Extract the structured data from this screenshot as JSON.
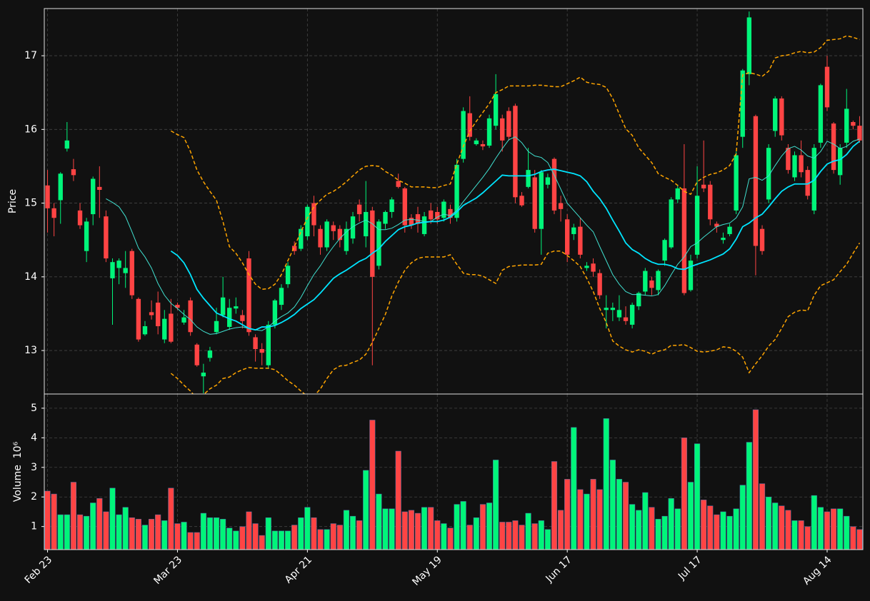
{
  "chart_data": {
    "type": "candlestick",
    "ylabel": "Price",
    "volume_ylabel": "Volume  10⁶",
    "categories": [
      "Feb 23",
      null,
      null,
      null,
      null,
      null,
      null,
      null,
      null,
      null,
      null,
      null,
      null,
      null,
      null,
      null,
      null,
      null,
      null,
      null,
      "Mar 23",
      null,
      null,
      null,
      null,
      null,
      null,
      null,
      null,
      null,
      null,
      null,
      null,
      null,
      null,
      null,
      null,
      null,
      null,
      null,
      "Apr 21",
      null,
      null,
      null,
      null,
      null,
      null,
      null,
      null,
      null,
      null,
      null,
      null,
      null,
      null,
      null,
      null,
      null,
      null,
      null,
      "May 19",
      null,
      null,
      null,
      null,
      null,
      null,
      null,
      null,
      null,
      null,
      null,
      null,
      null,
      null,
      null,
      null,
      null,
      null,
      null,
      "Jun 17",
      null,
      null,
      null,
      null,
      null,
      null,
      null,
      null,
      null,
      null,
      null,
      null,
      null,
      null,
      null,
      null,
      null,
      null,
      null,
      "Jul 17",
      null,
      null,
      null,
      null,
      null,
      null,
      null,
      null,
      null,
      null,
      null,
      null,
      null,
      null,
      null,
      null,
      null,
      null,
      null,
      "Aug 14",
      null,
      null,
      null,
      null,
      null
    ],
    "open": [
      15.24,
      14.93,
      15.04,
      15.74,
      15.46,
      14.9,
      14.35,
      14.85,
      15.22,
      14.82,
      13.98,
      14.12,
      14.05,
      14.35,
      13.7,
      13.22,
      13.52,
      13.65,
      13.15,
      13.5,
      13.62,
      13.38,
      13.68,
      13.08,
      12.65,
      12.9,
      13.25,
      13.48,
      13.32,
      13.57,
      13.48,
      14.25,
      13.18,
      13.02,
      12.8,
      13.35,
      13.62,
      13.9,
      14.42,
      14.38,
      14.55,
      15.0,
      14.65,
      14.4,
      14.7,
      14.65,
      14.35,
      14.52,
      14.98,
      14.55,
      14.9,
      14.15,
      14.72,
      14.88,
      15.3,
      15.2,
      14.8,
      14.85,
      14.58,
      14.9,
      14.88,
      14.8,
      14.92,
      14.8,
      15.6,
      16.22,
      15.8,
      15.8,
      15.78,
      16.05,
      16.15,
      16.25,
      16.32,
      15.1,
      15.22,
      15.35,
      14.65,
      15.25,
      15.6,
      15.0,
      14.78,
      14.58,
      14.68,
      14.12,
      14.18,
      14.05,
      13.55,
      13.55,
      13.45,
      13.45,
      13.35,
      13.6,
      13.8,
      13.95,
      13.82,
      14.22,
      14.4,
      15.05,
      15.2,
      13.82,
      14.3,
      15.25,
      15.25,
      14.72,
      14.5,
      14.58,
      14.9,
      15.9,
      16.75,
      16.18,
      14.65,
      15.05,
      15.98,
      16.42,
      15.75,
      15.35,
      15.65,
      15.45,
      14.9,
      15.82,
      16.85,
      16.08,
      15.38,
      15.82,
      16.1,
      16.05
    ],
    "high": [
      15.45,
      15.0,
      15.42,
      16.1,
      15.6,
      15.0,
      14.8,
      15.36,
      15.5,
      14.9,
      14.25,
      14.25,
      14.35,
      14.38,
      13.72,
      13.4,
      13.68,
      13.8,
      13.55,
      13.7,
      13.65,
      13.55,
      13.72,
      13.1,
      12.82,
      13.05,
      13.58,
      14.0,
      13.7,
      13.72,
      13.55,
      14.35,
      13.22,
      13.1,
      13.4,
      13.7,
      13.9,
      14.2,
      14.48,
      14.7,
      14.98,
      15.1,
      14.7,
      14.78,
      14.75,
      14.7,
      14.75,
      14.88,
      15.05,
      15.3,
      14.95,
      14.78,
      14.9,
      15.08,
      15.4,
      15.22,
      14.85,
      14.95,
      14.88,
      15.0,
      14.95,
      15.05,
      14.98,
      15.6,
      16.3,
      16.45,
      15.88,
      15.85,
      16.2,
      16.75,
      16.2,
      16.3,
      16.35,
      15.15,
      15.75,
      15.45,
      15.45,
      15.4,
      15.62,
      15.1,
      14.85,
      14.72,
      14.8,
      14.2,
      14.25,
      14.1,
      13.75,
      13.65,
      13.75,
      13.6,
      13.65,
      13.8,
      14.12,
      14.0,
      14.1,
      14.52,
      15.08,
      15.25,
      15.8,
      14.3,
      15.5,
      15.85,
      15.3,
      14.75,
      14.6,
      14.72,
      15.7,
      16.82,
      17.6,
      16.2,
      14.7,
      15.8,
      16.45,
      16.45,
      15.8,
      15.7,
      15.85,
      15.5,
      15.8,
      16.62,
      17.0,
      16.1,
      15.8,
      16.55,
      16.12,
      16.18
    ],
    "low": [
      14.6,
      14.55,
      14.72,
      15.7,
      15.3,
      14.65,
      14.2,
      14.7,
      14.8,
      14.2,
      13.35,
      13.9,
      13.85,
      13.7,
      13.12,
      13.2,
      13.42,
      13.22,
      13.1,
      13.1,
      13.55,
      13.35,
      13.2,
      12.78,
      12.42,
      12.85,
      13.22,
      13.45,
      13.28,
      13.5,
      13.3,
      13.2,
      12.85,
      12.8,
      12.75,
      13.3,
      13.55,
      13.85,
      14.3,
      14.35,
      14.5,
      14.55,
      14.3,
      14.35,
      14.5,
      14.4,
      14.3,
      14.45,
      14.75,
      14.4,
      12.8,
      14.1,
      14.65,
      14.8,
      15.2,
      14.6,
      14.65,
      14.6,
      14.55,
      14.72,
      14.72,
      14.75,
      14.72,
      14.75,
      15.55,
      15.85,
      15.78,
      15.72,
      15.75,
      16.0,
      15.7,
      15.85,
      15.0,
      14.95,
      15.2,
      14.6,
      14.3,
      15.2,
      14.85,
      14.75,
      14.2,
      14.5,
      14.25,
      14.08,
      14.0,
      13.7,
      13.3,
      13.4,
      13.4,
      13.35,
      13.3,
      13.55,
      13.75,
      13.75,
      13.75,
      14.15,
      14.38,
      15.0,
      13.75,
      13.8,
      14.25,
      15.15,
      14.7,
      14.6,
      14.45,
      14.55,
      14.85,
      15.75,
      16.6,
      14.02,
      14.3,
      15.0,
      15.9,
      15.85,
      15.4,
      15.3,
      15.35,
      15.05,
      14.85,
      15.75,
      16.25,
      15.4,
      15.25,
      15.75,
      16.0,
      15.82
    ],
    "close": [
      14.93,
      14.8,
      15.4,
      15.85,
      15.38,
      14.7,
      14.75,
      15.33,
      15.18,
      14.25,
      14.2,
      14.22,
      14.12,
      13.75,
      13.15,
      13.33,
      13.48,
      13.33,
      13.43,
      13.12,
      13.58,
      13.45,
      13.25,
      12.8,
      12.7,
      13.0,
      13.4,
      13.72,
      13.58,
      13.6,
      13.4,
      13.25,
      13.02,
      12.97,
      13.35,
      13.68,
      13.85,
      14.15,
      14.35,
      14.65,
      14.95,
      14.7,
      14.4,
      14.75,
      14.62,
      14.5,
      14.65,
      14.82,
      14.85,
      14.88,
      14.0,
      14.75,
      14.88,
      15.05,
      15.22,
      14.7,
      14.7,
      14.72,
      14.82,
      14.78,
      14.78,
      15.02,
      14.8,
      15.52,
      16.25,
      15.9,
      15.85,
      15.77,
      16.15,
      16.48,
      15.85,
      15.9,
      15.08,
      14.97,
      15.45,
      14.65,
      15.42,
      15.35,
      14.9,
      14.92,
      14.3,
      14.67,
      14.3,
      14.15,
      14.07,
      13.75,
      13.58,
      13.58,
      13.55,
      13.4,
      13.62,
      13.78,
      14.08,
      13.85,
      14.08,
      14.5,
      15.05,
      15.2,
      13.78,
      14.22,
      15.1,
      15.2,
      14.78,
      14.68,
      14.53,
      14.68,
      15.65,
      16.8,
      17.52,
      14.42,
      14.35,
      15.75,
      16.42,
      15.92,
      15.45,
      15.65,
      15.42,
      15.1,
      15.75,
      16.6,
      16.3,
      15.45,
      15.75,
      16.28,
      16.05,
      15.85
    ],
    "volume": [
      2.2,
      2.1,
      1.4,
      1.4,
      2.5,
      1.4,
      1.35,
      1.8,
      1.95,
      1.5,
      2.3,
      1.4,
      1.65,
      1.3,
      1.25,
      1.05,
      1.25,
      1.4,
      1.2,
      2.3,
      1.1,
      1.15,
      0.8,
      0.8,
      1.45,
      1.3,
      1.3,
      1.25,
      0.95,
      0.85,
      1.0,
      1.5,
      1.1,
      0.7,
      1.3,
      0.85,
      0.85,
      0.85,
      1.05,
      1.3,
      1.65,
      1.3,
      0.9,
      0.9,
      1.1,
      1.05,
      1.55,
      1.35,
      1.2,
      2.9,
      4.6,
      2.1,
      1.6,
      1.6,
      3.55,
      1.5,
      1.55,
      1.45,
      1.65,
      1.65,
      1.2,
      1.1,
      0.95,
      1.75,
      1.85,
      1.05,
      1.3,
      1.75,
      1.8,
      3.25,
      1.15,
      1.15,
      1.2,
      1.05,
      1.45,
      1.1,
      1.2,
      0.9,
      3.2,
      1.55,
      2.6,
      4.35,
      2.25,
      2.1,
      2.6,
      2.25,
      4.65,
      3.25,
      2.6,
      2.5,
      1.75,
      1.55,
      2.15,
      1.65,
      1.25,
      1.35,
      1.95,
      1.6,
      4.0,
      2.5,
      3.8,
      1.9,
      1.7,
      1.4,
      1.5,
      1.35,
      1.6,
      2.4,
      3.85,
      4.95,
      2.45,
      2.0,
      1.8,
      1.7,
      1.55,
      1.2,
      1.2,
      1.0,
      2.05,
      1.65,
      1.5,
      1.6,
      1.6,
      1.35,
      1.0,
      0.9
    ],
    "overlays": [
      {
        "color": "#40e0d0",
        "values": [
          null,
          null,
          null,
          null,
          null,
          null,
          null,
          null,
          null,
          15.06,
          15.01,
          14.95,
          14.82,
          14.61,
          14.39,
          14.27,
          14.12,
          13.91,
          13.75,
          13.64,
          13.57,
          13.49,
          13.42,
          13.32,
          13.26,
          13.22,
          13.23,
          13.26,
          13.29,
          13.31,
          13.32,
          13.3,
          13.28,
          13.27,
          13.32,
          13.4,
          13.46,
          13.51,
          13.59,
          13.72,
          13.88,
          14.03,
          14.15,
          14.29,
          14.41,
          14.52,
          14.61,
          14.68,
          14.73,
          14.77,
          14.72,
          14.64,
          14.64,
          14.66,
          14.71,
          14.77,
          14.78,
          14.77,
          14.75,
          14.75,
          14.81,
          14.85,
          14.83,
          14.9,
          15.02,
          15.13,
          15.24,
          15.35,
          15.47,
          15.61,
          15.74,
          15.86,
          15.9,
          15.82,
          15.7,
          15.64,
          15.62,
          15.55,
          15.38,
          15.19,
          15.0,
          14.9,
          14.8,
          14.7,
          14.61,
          14.41,
          14.22,
          14.03,
          13.9,
          13.8,
          13.76,
          13.76,
          13.75,
          13.74,
          13.76,
          13.88,
          14.03,
          14.17,
          14.27,
          14.41,
          14.46,
          14.54,
          14.61,
          14.68,
          14.71,
          14.73,
          14.8,
          14.95,
          15.33,
          15.35,
          15.31,
          15.37,
          15.51,
          15.64,
          15.74,
          15.77,
          15.72,
          15.64,
          15.61,
          15.7,
          15.84,
          15.8,
          15.74,
          15.77,
          15.84,
          15.87
        ]
      },
      {
        "color": "#00e5ff",
        "values": [
          null,
          null,
          null,
          null,
          null,
          null,
          null,
          null,
          null,
          null,
          null,
          null,
          null,
          null,
          null,
          null,
          null,
          null,
          null,
          14.35,
          14.29,
          14.19,
          14.03,
          13.83,
          13.71,
          13.61,
          13.51,
          13.47,
          13.43,
          13.4,
          13.35,
          13.3,
          13.28,
          13.32,
          13.32,
          13.34,
          13.38,
          13.43,
          13.49,
          13.57,
          13.63,
          13.69,
          13.78,
          13.88,
          13.98,
          14.04,
          14.09,
          14.15,
          14.21,
          14.25,
          14.32,
          14.38,
          14.48,
          14.56,
          14.64,
          14.68,
          14.7,
          14.73,
          14.74,
          14.75,
          14.75,
          14.77,
          14.81,
          14.88,
          14.97,
          15.02,
          15.07,
          15.14,
          15.22,
          15.3,
          15.38,
          15.37,
          15.37,
          15.37,
          15.37,
          15.39,
          15.43,
          15.45,
          15.46,
          15.44,
          15.42,
          15.4,
          15.37,
          15.29,
          15.16,
          15.06,
          14.93,
          14.77,
          14.62,
          14.46,
          14.37,
          14.32,
          14.25,
          14.2,
          14.17,
          14.17,
          14.15,
          14.11,
          14.1,
          14.14,
          14.17,
          14.2,
          14.23,
          14.27,
          14.31,
          14.38,
          14.51,
          14.68,
          14.73,
          14.8,
          14.85,
          14.95,
          15.06,
          15.16,
          15.22,
          15.26,
          15.26,
          15.26,
          15.31,
          15.43,
          15.53,
          15.57,
          15.59,
          15.66,
          15.77,
          15.84
        ]
      },
      {
        "color": "#ffa500",
        "linestyle": "dashed",
        "values": [
          null,
          null,
          null,
          null,
          null,
          null,
          null,
          null,
          null,
          null,
          null,
          null,
          null,
          null,
          null,
          null,
          null,
          null,
          null,
          15.98,
          15.93,
          15.89,
          15.7,
          15.45,
          15.29,
          15.16,
          15.04,
          14.75,
          14.41,
          14.32,
          14.19,
          14.03,
          13.9,
          13.83,
          13.84,
          13.9,
          14.03,
          14.22,
          14.41,
          14.61,
          14.8,
          14.95,
          15.04,
          15.12,
          15.16,
          15.22,
          15.29,
          15.37,
          15.45,
          15.5,
          15.51,
          15.5,
          15.43,
          15.38,
          15.31,
          15.27,
          15.22,
          15.22,
          15.22,
          15.21,
          15.21,
          15.24,
          15.26,
          15.53,
          15.77,
          15.98,
          16.11,
          16.23,
          16.35,
          16.5,
          16.54,
          16.59,
          16.59,
          16.59,
          16.59,
          16.6,
          16.6,
          16.59,
          16.58,
          16.58,
          16.62,
          16.66,
          16.71,
          16.64,
          16.62,
          16.61,
          16.57,
          16.42,
          16.21,
          16.01,
          15.92,
          15.75,
          15.65,
          15.55,
          15.4,
          15.35,
          15.31,
          15.24,
          15.16,
          15.12,
          15.29,
          15.35,
          15.39,
          15.41,
          15.45,
          15.51,
          15.67,
          16.74,
          16.77,
          16.75,
          16.72,
          16.79,
          16.97,
          17.0,
          17.01,
          17.04,
          17.06,
          17.04,
          17.05,
          17.11,
          17.21,
          17.22,
          17.23,
          17.27,
          17.25,
          17.22
        ]
      },
      {
        "color": "#ffa500",
        "linestyle": "dashed",
        "values": [
          null,
          null,
          null,
          null,
          null,
          null,
          null,
          null,
          null,
          null,
          null,
          null,
          null,
          null,
          null,
          null,
          null,
          null,
          null,
          12.69,
          12.62,
          12.53,
          12.45,
          12.35,
          12.4,
          12.48,
          12.53,
          12.62,
          12.64,
          12.7,
          12.74,
          12.77,
          12.76,
          12.76,
          12.76,
          12.74,
          12.67,
          12.59,
          12.53,
          12.45,
          12.38,
          12.38,
          12.48,
          12.62,
          12.74,
          12.79,
          12.8,
          12.84,
          12.87,
          12.95,
          13.11,
          13.3,
          13.49,
          13.74,
          13.93,
          14.09,
          14.19,
          14.25,
          14.27,
          14.27,
          14.27,
          14.27,
          14.3,
          14.17,
          14.05,
          14.03,
          14.03,
          14.01,
          13.96,
          13.91,
          14.09,
          14.14,
          14.15,
          14.16,
          14.16,
          14.16,
          14.17,
          14.32,
          14.35,
          14.35,
          14.29,
          14.22,
          14.14,
          13.98,
          13.8,
          13.57,
          13.38,
          13.13,
          13.06,
          13.01,
          12.98,
          13.01,
          12.99,
          12.95,
          12.99,
          13.01,
          13.07,
          13.07,
          13.08,
          13.04,
          12.99,
          12.98,
          12.99,
          13.01,
          13.05,
          13.04,
          12.99,
          12.91,
          12.7,
          12.82,
          12.93,
          13.06,
          13.15,
          13.3,
          13.46,
          13.52,
          13.55,
          13.54,
          13.75,
          13.88,
          13.92,
          13.96,
          14.07,
          14.17,
          14.32,
          14.46
        ]
      }
    ],
    "up_color": "#00f57a",
    "down_color": "#ff4444",
    "ylim": [
      12.41,
      17.64
    ],
    "yticks": [
      13,
      14,
      15,
      16,
      17
    ],
    "volume_ylim": [
      0.22,
      5.48
    ],
    "volume_yticks": [
      1,
      2,
      3,
      4,
      5
    ],
    "grid": true
  }
}
